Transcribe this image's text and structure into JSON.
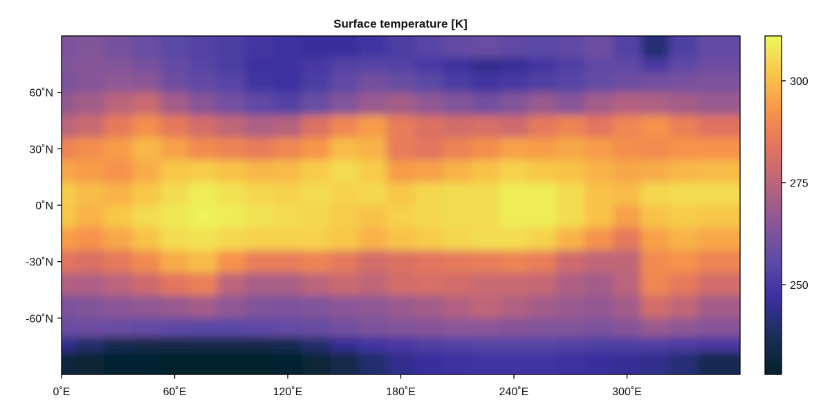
{
  "chart_data": {
    "type": "heatmap",
    "title": "Surface temperature [K]",
    "xlabel": "",
    "ylabel": "",
    "colormap": "thermal",
    "x_range": [
      0,
      360
    ],
    "y_range": [
      -90,
      90
    ],
    "xticks": [
      {
        "value": 0,
        "label": "0˚E"
      },
      {
        "value": 60,
        "label": "60˚E"
      },
      {
        "value": 120,
        "label": "120˚E"
      },
      {
        "value": 180,
        "label": "180˚E"
      },
      {
        "value": 240,
        "label": "240˚E"
      },
      {
        "value": 300,
        "label": "300˚E"
      }
    ],
    "yticks": [
      {
        "value": 60,
        "label": "60˚N"
      },
      {
        "value": 30,
        "label": "30˚N"
      },
      {
        "value": 0,
        "label": "0˚N"
      },
      {
        "value": -30,
        "label": "-30˚N"
      },
      {
        "value": -60,
        "label": "-60˚N"
      }
    ],
    "colorbar": {
      "range": [
        228,
        311
      ],
      "ticks": [
        {
          "value": 250,
          "label": "250"
        },
        {
          "value": 275,
          "label": "275"
        },
        {
          "value": 300,
          "label": "300"
        }
      ]
    },
    "colormap_stops": [
      "#03232b",
      "#1a2d57",
      "#3b2f9f",
      "#5c4aa6",
      "#8a5697",
      "#b7637e",
      "#e07360",
      "#f7944a",
      "#f8c64a",
      "#eef75a"
    ],
    "lat_centers": [
      82,
      75,
      66,
      54,
      42,
      30,
      18,
      6,
      -6,
      -18,
      -30,
      -42,
      -54,
      -66,
      -74,
      -82
    ],
    "lon_centers": [
      0,
      15,
      30,
      45,
      60,
      75,
      90,
      105,
      120,
      135,
      150,
      165,
      180,
      195,
      210,
      225,
      240,
      255,
      270,
      285,
      300,
      315,
      330,
      345
    ],
    "values": [
      [
        262,
        263,
        261,
        258,
        255,
        253,
        251,
        249,
        247,
        246,
        246,
        248,
        251,
        254,
        257,
        258,
        256,
        255,
        256,
        259,
        253,
        241,
        252,
        257
      ],
      [
        263,
        264,
        263,
        261,
        257,
        254,
        251,
        247,
        247,
        250,
        253,
        254,
        253,
        250,
        247,
        244,
        245,
        249,
        252,
        256,
        256,
        250,
        256,
        259
      ],
      [
        262,
        264,
        266,
        265,
        259,
        256,
        254,
        248,
        247,
        251,
        256,
        260,
        258,
        255,
        251,
        248,
        250,
        252,
        254,
        257,
        259,
        260,
        261,
        262
      ],
      [
        267,
        270,
        275,
        278,
        270,
        264,
        260,
        256,
        253,
        258,
        263,
        268,
        270,
        266,
        263,
        260,
        263,
        268,
        264,
        270,
        273,
        272,
        270,
        268
      ],
      [
        275,
        278,
        285,
        291,
        285,
        280,
        276,
        272,
        274,
        282,
        289,
        294,
        286,
        282,
        280,
        281,
        279,
        285,
        288,
        284,
        289,
        292,
        287,
        283
      ],
      [
        288,
        291,
        294,
        299,
        295,
        290,
        288,
        286,
        289,
        293,
        300,
        298,
        286,
        284,
        288,
        291,
        295,
        294,
        296,
        294,
        291,
        290,
        292,
        292
      ],
      [
        296,
        294,
        292,
        297,
        302,
        303,
        301,
        299,
        300,
        303,
        306,
        303,
        294,
        295,
        298,
        301,
        304,
        302,
        301,
        298,
        296,
        297,
        299,
        300
      ],
      [
        303,
        300,
        298,
        302,
        306,
        309,
        307,
        305,
        304,
        306,
        304,
        305,
        302,
        305,
        306,
        306,
        309,
        309,
        306,
        301,
        300,
        305,
        306,
        306
      ],
      [
        302,
        298,
        302,
        306,
        308,
        310,
        309,
        307,
        306,
        305,
        303,
        301,
        304,
        305,
        306,
        306,
        309,
        309,
        306,
        301,
        295,
        301,
        303,
        302
      ],
      [
        294,
        292,
        296,
        301,
        306,
        307,
        305,
        304,
        304,
        304,
        302,
        298,
        301,
        303,
        305,
        306,
        306,
        304,
        298,
        292,
        285,
        295,
        298,
        296
      ],
      [
        284,
        282,
        285,
        290,
        297,
        300,
        292,
        286,
        286,
        288,
        285,
        280,
        282,
        284,
        285,
        286,
        288,
        286,
        279,
        276,
        276,
        290,
        292,
        288
      ],
      [
        273,
        272,
        275,
        279,
        284,
        287,
        275,
        271,
        271,
        275,
        278,
        276,
        280,
        281,
        280,
        278,
        278,
        277,
        272,
        270,
        275,
        289,
        285,
        280
      ],
      [
        262,
        263,
        265,
        266,
        268,
        270,
        266,
        263,
        262,
        263,
        265,
        266,
        268,
        270,
        273,
        276,
        273,
        270,
        268,
        267,
        270,
        280,
        276,
        270
      ],
      [
        258,
        259,
        258,
        257,
        256,
        255,
        255,
        256,
        257,
        258,
        260,
        262,
        263,
        264,
        265,
        265,
        264,
        263,
        263,
        262,
        264,
        268,
        266,
        264
      ],
      [
        244,
        240,
        236,
        234,
        234,
        234,
        234,
        235,
        236,
        240,
        245,
        248,
        250,
        252,
        253,
        254,
        254,
        254,
        253,
        252,
        252,
        252,
        251,
        250
      ],
      [
        232,
        230,
        229,
        229,
        228,
        228,
        228,
        228,
        229,
        231,
        235,
        240,
        244,
        246,
        247,
        248,
        248,
        248,
        247,
        246,
        245,
        244,
        241,
        236
      ]
    ]
  }
}
